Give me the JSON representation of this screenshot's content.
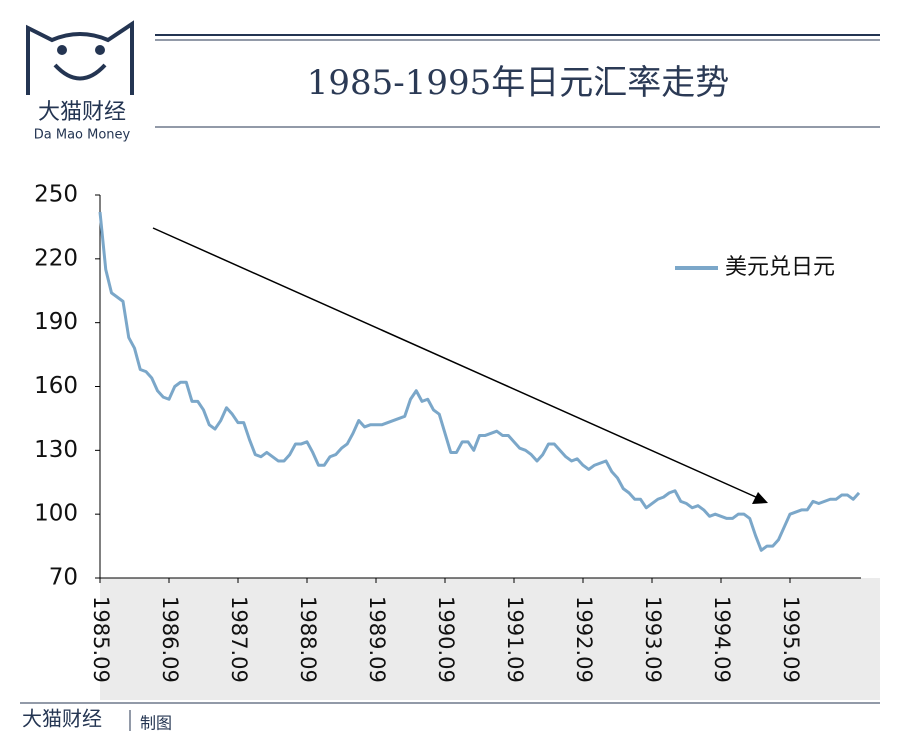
{
  "header": {
    "logo_cn": "大猫财经",
    "logo_en": "Da Mao Money",
    "title": "1985-1995年日元汇率走势"
  },
  "footer": {
    "brand": "大猫财经",
    "note": "制图"
  },
  "chart_data": {
    "type": "line",
    "categories": [
      "1985.09",
      null,
      null,
      null,
      null,
      null,
      null,
      null,
      null,
      null,
      null,
      null,
      "1986.09",
      null,
      null,
      null,
      null,
      null,
      null,
      null,
      null,
      null,
      null,
      null,
      "1987.09",
      null,
      null,
      null,
      null,
      null,
      null,
      null,
      null,
      null,
      null,
      null,
      "1988.09",
      null,
      null,
      null,
      null,
      null,
      null,
      null,
      null,
      null,
      null,
      null,
      "1989.09",
      null,
      null,
      null,
      null,
      null,
      null,
      null,
      null,
      null,
      null,
      null,
      "1990.09",
      null,
      null,
      null,
      null,
      null,
      null,
      null,
      null,
      null,
      null,
      null,
      "1991.09",
      null,
      null,
      null,
      null,
      null,
      null,
      null,
      null,
      null,
      null,
      null,
      "1992.09",
      null,
      null,
      null,
      null,
      null,
      null,
      null,
      null,
      null,
      null,
      null,
      "1993.09",
      null,
      null,
      null,
      null,
      null,
      null,
      null,
      null,
      null,
      null,
      null,
      "1994.09",
      null,
      null,
      null,
      null,
      null,
      null,
      null,
      null,
      null,
      null,
      null,
      "1995.09",
      null,
      null,
      null,
      null,
      null,
      null,
      null,
      null,
      null,
      null,
      null,
      null
    ],
    "series": [
      {
        "name": "美元兑日元",
        "color": "#7ba7c9",
        "values": [
          242,
          215,
          204,
          202,
          200,
          183,
          178,
          168,
          167,
          164,
          158,
          155,
          154,
          160,
          162,
          162,
          153,
          153,
          149,
          142,
          140,
          144,
          150,
          147,
          143,
          143,
          135,
          128,
          127,
          129,
          127,
          125,
          125,
          128,
          133,
          133,
          134,
          129,
          123,
          123,
          127,
          128,
          131,
          133,
          138,
          144,
          141,
          142,
          142,
          142,
          143,
          144,
          145,
          146,
          154,
          158,
          153,
          154,
          149,
          147,
          138,
          129,
          129,
          134,
          134,
          130,
          137,
          137,
          138,
          139,
          137,
          137,
          134,
          131,
          130,
          128,
          125,
          128,
          133,
          133,
          130,
          127,
          125,
          126,
          123,
          121,
          123,
          124,
          125,
          120,
          117,
          112,
          110,
          107,
          107,
          103,
          105,
          107,
          108,
          110,
          111,
          106,
          105,
          103,
          104,
          102,
          99,
          100,
          99,
          98,
          98,
          100,
          100,
          98,
          90,
          83,
          85,
          85,
          88,
          94,
          100,
          101,
          102,
          102,
          106,
          105,
          106,
          107,
          107,
          109,
          109,
          107,
          110
        ]
      }
    ],
    "ylim": [
      70,
      250
    ],
    "yticks": [
      70,
      100,
      130,
      160,
      190,
      220,
      250
    ],
    "grid": false,
    "legend": "upper-right"
  }
}
